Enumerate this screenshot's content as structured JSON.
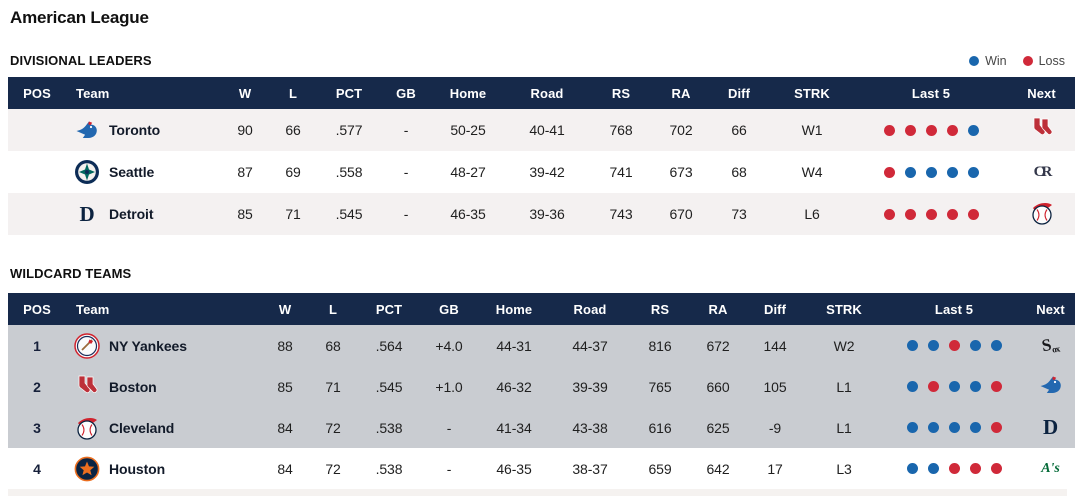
{
  "page": {
    "title": "American League"
  },
  "legend": {
    "win_label": "Win",
    "loss_label": "Loss"
  },
  "colors": {
    "header_navy": "#16294a",
    "win_blue": "#1966ad",
    "loss_red": "#d02939",
    "wildcard_highlight_gray": "#c9ccd1",
    "row_alt_gray": "#f4f1f1"
  },
  "sections": [
    {
      "key": "divisional",
      "title": "DIVISIONAL LEADERS",
      "columns": [
        "POS",
        "Team",
        "W",
        "L",
        "PCT",
        "GB",
        "Home",
        "Road",
        "RS",
        "RA",
        "Diff",
        "STRK",
        "Last 5",
        "Next"
      ],
      "rows": [
        {
          "pos": "",
          "team": "Toronto",
          "logo": "blue-jays",
          "w": "90",
          "l": "66",
          "pct": ".577",
          "gb": "-",
          "home": "50-25",
          "road": "40-41",
          "rs": "768",
          "ra": "702",
          "diff": "66",
          "strk": "W1",
          "last5": [
            "loss",
            "loss",
            "loss",
            "loss",
            "win"
          ],
          "next_logo": "red-sox",
          "highlighted": false
        },
        {
          "pos": "",
          "team": "Seattle",
          "logo": "mariners",
          "w": "87",
          "l": "69",
          "pct": ".558",
          "gb": "-",
          "home": "48-27",
          "road": "39-42",
          "rs": "741",
          "ra": "673",
          "diff": "68",
          "strk": "W4",
          "last5": [
            "loss",
            "win",
            "win",
            "win",
            "win"
          ],
          "next_logo": "rockies",
          "highlighted": false
        },
        {
          "pos": "",
          "team": "Detroit",
          "logo": "tigers",
          "w": "85",
          "l": "71",
          "pct": ".545",
          "gb": "-",
          "home": "46-35",
          "road": "39-36",
          "rs": "743",
          "ra": "670",
          "diff": "73",
          "strk": "L6",
          "last5": [
            "loss",
            "loss",
            "loss",
            "loss",
            "loss"
          ],
          "next_logo": "guardians",
          "highlighted": false
        }
      ]
    },
    {
      "key": "wildcard",
      "title": "WILDCARD TEAMS",
      "columns": [
        "POS",
        "Team",
        "W",
        "L",
        "PCT",
        "GB",
        "Home",
        "Road",
        "RS",
        "RA",
        "Diff",
        "STRK",
        "Last 5",
        "Next"
      ],
      "rows": [
        {
          "pos": "1",
          "team": "NY Yankees",
          "logo": "yankees",
          "w": "88",
          "l": "68",
          "pct": ".564",
          "gb": "+4.0",
          "home": "44-31",
          "road": "44-37",
          "rs": "816",
          "ra": "672",
          "diff": "144",
          "strk": "W2",
          "last5": [
            "win",
            "win",
            "loss",
            "win",
            "win"
          ],
          "next_logo": "white-sox",
          "highlighted": true
        },
        {
          "pos": "2",
          "team": "Boston",
          "logo": "red-sox",
          "w": "85",
          "l": "71",
          "pct": ".545",
          "gb": "+1.0",
          "home": "46-32",
          "road": "39-39",
          "rs": "765",
          "ra": "660",
          "diff": "105",
          "strk": "L1",
          "last5": [
            "win",
            "loss",
            "win",
            "win",
            "loss"
          ],
          "next_logo": "blue-jays",
          "highlighted": true
        },
        {
          "pos": "3",
          "team": "Cleveland",
          "logo": "guardians",
          "w": "84",
          "l": "72",
          "pct": ".538",
          "gb": "-",
          "home": "41-34",
          "road": "43-38",
          "rs": "616",
          "ra": "625",
          "diff": "-9",
          "strk": "L1",
          "last5": [
            "win",
            "win",
            "win",
            "win",
            "loss"
          ],
          "next_logo": "tigers",
          "highlighted": true
        },
        {
          "pos": "4",
          "team": "Houston",
          "logo": "astros",
          "w": "84",
          "l": "72",
          "pct": ".538",
          "gb": "-",
          "home": "46-35",
          "road": "38-37",
          "rs": "659",
          "ra": "642",
          "diff": "17",
          "strk": "L3",
          "last5": [
            "win",
            "win",
            "loss",
            "loss",
            "loss"
          ],
          "next_logo": "athletics",
          "highlighted": false
        }
      ]
    }
  ]
}
